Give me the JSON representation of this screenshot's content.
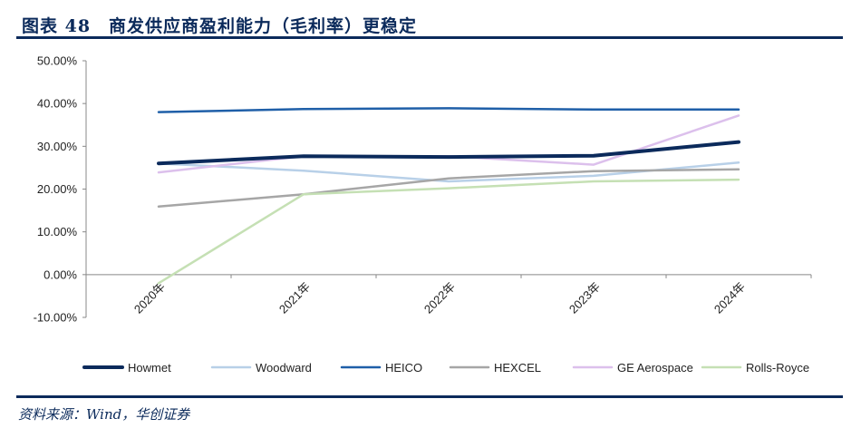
{
  "figure": {
    "title": "图表 48　商发供应商盈利能力（毛利率）更稳定",
    "source": "资料来源：Wind，华创证券"
  },
  "chart_data": {
    "type": "line",
    "title": "",
    "xlabel": "",
    "ylabel": "",
    "categories": [
      "2020年",
      "2021年",
      "2022年",
      "2023年",
      "2024年"
    ],
    "ylim": [
      -10,
      50
    ],
    "yticks": [
      50,
      40,
      30,
      20,
      10,
      0,
      -10
    ],
    "ytick_labels": [
      "50.00%",
      "40.00%",
      "30.00%",
      "20.00%",
      "10.00%",
      "0.00%",
      "-10.00%"
    ],
    "grid": false,
    "legend_position": "bottom",
    "series": [
      {
        "name": "Howmet",
        "color": "#0b2a5b",
        "width": 4,
        "values": [
          26.0,
          27.7,
          27.5,
          27.8,
          31.0
        ]
      },
      {
        "name": "Woodward",
        "color": "#b8d0e8",
        "width": 2.5,
        "values": [
          26.0,
          24.3,
          21.8,
          23.1,
          26.2
        ]
      },
      {
        "name": "HEICO",
        "color": "#1f5fa8",
        "width": 2.5,
        "values": [
          38.0,
          38.7,
          38.9,
          38.6,
          38.6
        ]
      },
      {
        "name": "HEXCEL",
        "color": "#a6a6a6",
        "width": 2.5,
        "values": [
          15.9,
          18.8,
          22.5,
          24.2,
          24.6
        ]
      },
      {
        "name": "GE Aerospace",
        "color": "#dcc0ec",
        "width": 2.5,
        "values": [
          23.9,
          27.7,
          27.7,
          25.7,
          37.2
        ]
      },
      {
        "name": "Rolls-Royce",
        "color": "#c5e0b4",
        "width": 2.5,
        "values": [
          -2.0,
          18.8,
          20.2,
          21.8,
          22.2
        ]
      }
    ]
  }
}
